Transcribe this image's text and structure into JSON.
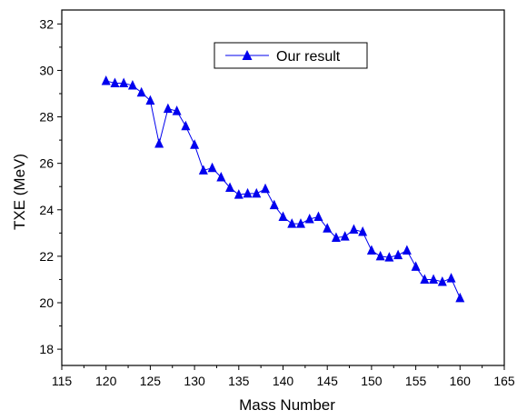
{
  "chart_data": {
    "type": "line",
    "xlabel": "Mass Number",
    "ylabel": "TXE (MeV)",
    "xlim": [
      115,
      165
    ],
    "ylim": [
      17.3,
      32.6
    ],
    "xticks": [
      115,
      120,
      125,
      130,
      135,
      140,
      145,
      150,
      155,
      160,
      165
    ],
    "yticks": [
      18,
      20,
      22,
      24,
      26,
      28,
      30,
      32
    ],
    "grid": false,
    "legend_position": "top-center",
    "series": [
      {
        "name": "Our result",
        "color": "#0000ee",
        "marker": "triangle",
        "x": [
          120,
          121,
          122,
          123,
          124,
          125,
          126,
          127,
          128,
          129,
          130,
          131,
          132,
          133,
          134,
          135,
          136,
          137,
          138,
          139,
          140,
          141,
          142,
          143,
          144,
          145,
          146,
          147,
          148,
          149,
          150,
          151,
          152,
          153,
          154,
          155,
          156,
          157,
          158,
          159,
          160
        ],
        "y": [
          29.55,
          29.45,
          29.45,
          29.35,
          29.05,
          28.7,
          26.85,
          28.35,
          28.25,
          27.6,
          26.8,
          25.7,
          25.8,
          25.4,
          24.95,
          24.65,
          24.7,
          24.7,
          24.9,
          24.2,
          23.7,
          23.4,
          23.4,
          23.6,
          23.7,
          23.2,
          22.8,
          22.85,
          23.15,
          23.05,
          22.25,
          22.0,
          21.95,
          22.05,
          22.25,
          21.55,
          21.0,
          21.0,
          20.9,
          21.05,
          20.2
        ]
      }
    ]
  }
}
